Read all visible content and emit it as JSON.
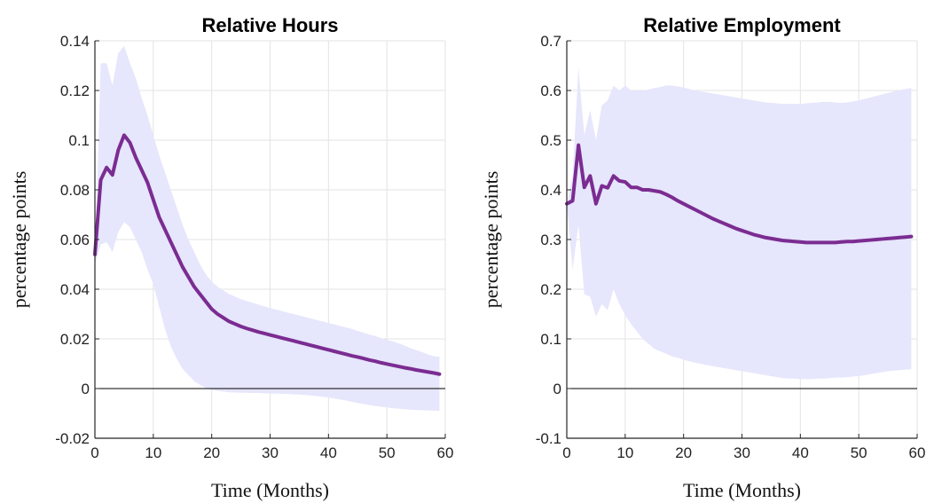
{
  "colors": {
    "band": "#e6e6fc",
    "line": "#7b2c91",
    "grid": "#e3e3e3",
    "axis": "#262626",
    "zero": "#000000"
  },
  "chart_data": [
    {
      "type": "line",
      "title": "Relative Hours",
      "xlabel": "Time (Months)",
      "ylabel": "percentage points",
      "xlim": [
        0,
        60
      ],
      "ylim": [
        -0.02,
        0.14
      ],
      "xticks": [
        "0",
        "10",
        "20",
        "30",
        "40",
        "50",
        "60"
      ],
      "yticks": [
        "-0.02",
        "0",
        "0.02",
        "0.04",
        "0.06",
        "0.08",
        "0.1",
        "0.12",
        "0.14"
      ],
      "grid": true,
      "zero_line": true,
      "series": [
        {
          "type": "line",
          "x": [
            0,
            1,
            2,
            3,
            4,
            5,
            6,
            7,
            8,
            9,
            10,
            11,
            12,
            13,
            14,
            15,
            16,
            17,
            18,
            19,
            20,
            21,
            22,
            23,
            24,
            25,
            26,
            27,
            28,
            29,
            30,
            31,
            32,
            33,
            34,
            35,
            36,
            37,
            38,
            39,
            40,
            41,
            42,
            43,
            44,
            45,
            46,
            47,
            48,
            49,
            50,
            51,
            52,
            53,
            54,
            55,
            56,
            57,
            58,
            59
          ],
          "y": [
            0.054,
            0.084,
            0.089,
            0.086,
            0.096,
            0.102,
            0.099,
            0.093,
            0.088,
            0.083,
            0.076,
            0.069,
            0.064,
            0.059,
            0.054,
            0.049,
            0.045,
            0.041,
            0.038,
            0.035,
            0.032,
            0.03,
            0.0285,
            0.027,
            0.026,
            0.025,
            0.0242,
            0.0235,
            0.0228,
            0.0222,
            0.0216,
            0.021,
            0.0204,
            0.0198,
            0.0192,
            0.0186,
            0.018,
            0.0174,
            0.0168,
            0.0162,
            0.0156,
            0.015,
            0.0144,
            0.0138,
            0.0132,
            0.0127,
            0.0121,
            0.0115,
            0.011,
            0.0104,
            0.0099,
            0.0094,
            0.0089,
            0.0084,
            0.008,
            0.0075,
            0.0071,
            0.0067,
            0.0063,
            0.0058
          ]
        },
        {
          "type": "band",
          "x": [
            0,
            1,
            2,
            3,
            4,
            5,
            6,
            7,
            8,
            9,
            10,
            11,
            12,
            13,
            14,
            15,
            16,
            17,
            18,
            19,
            20,
            21,
            22,
            23,
            24,
            25,
            26,
            27,
            28,
            29,
            30,
            31,
            32,
            33,
            34,
            35,
            36,
            37,
            38,
            39,
            40,
            41,
            42,
            43,
            44,
            45,
            46,
            47,
            48,
            49,
            50,
            51,
            52,
            53,
            54,
            55,
            56,
            57,
            58,
            59
          ],
          "upper": [
            0.05,
            0.131,
            0.131,
            0.122,
            0.135,
            0.138,
            0.131,
            0.125,
            0.117,
            0.11,
            0.102,
            0.094,
            0.087,
            0.08,
            0.073,
            0.066,
            0.06,
            0.055,
            0.05,
            0.046,
            0.043,
            0.041,
            0.0395,
            0.038,
            0.037,
            0.036,
            0.0352,
            0.0345,
            0.0338,
            0.0331,
            0.0324,
            0.0318,
            0.0312,
            0.0306,
            0.03,
            0.0294,
            0.0288,
            0.0282,
            0.0276,
            0.027,
            0.0264,
            0.0258,
            0.0252,
            0.0246,
            0.024,
            0.0232,
            0.0225,
            0.0218,
            0.0211,
            0.0204,
            0.0196,
            0.019,
            0.0182,
            0.0173,
            0.0163,
            0.0155,
            0.0147,
            0.0138,
            0.013,
            0.0128
          ],
          "lower": [
            0.05,
            0.058,
            0.059,
            0.055,
            0.063,
            0.067,
            0.065,
            0.06,
            0.055,
            0.048,
            0.042,
            0.033,
            0.024,
            0.017,
            0.012,
            0.008,
            0.0055,
            0.003,
            0.0015,
            0.0002,
            -0.0005,
            -0.0009,
            -0.0012,
            -0.0015,
            -0.0016,
            -0.0017,
            -0.0017,
            -0.0018,
            -0.0018,
            -0.0019,
            -0.002,
            -0.002,
            -0.0021,
            -0.0022,
            -0.0023,
            -0.0024,
            -0.0026,
            -0.0028,
            -0.003,
            -0.0033,
            -0.0036,
            -0.004,
            -0.0044,
            -0.0048,
            -0.0053,
            -0.0058,
            -0.0062,
            -0.0066,
            -0.007,
            -0.0073,
            -0.0076,
            -0.0079,
            -0.0081,
            -0.0083,
            -0.0085,
            -0.0086,
            -0.0087,
            -0.0088,
            -0.0089,
            -0.009
          ]
        }
      ]
    },
    {
      "type": "line",
      "title": "Relative Employment",
      "xlabel": "Time (Months)",
      "ylabel": "percentage points",
      "xlim": [
        0,
        60
      ],
      "ylim": [
        -0.1,
        0.7
      ],
      "xticks": [
        "0",
        "10",
        "20",
        "30",
        "40",
        "50",
        "60"
      ],
      "yticks": [
        "-0.1",
        "0",
        "0.1",
        "0.2",
        "0.3",
        "0.4",
        "0.5",
        "0.6",
        "0.7"
      ],
      "grid": true,
      "zero_line": true,
      "series": [
        {
          "type": "line",
          "x": [
            0,
            1,
            2,
            3,
            4,
            5,
            6,
            7,
            8,
            9,
            10,
            11,
            12,
            13,
            14,
            15,
            16,
            17,
            18,
            19,
            20,
            21,
            22,
            23,
            24,
            25,
            26,
            27,
            28,
            29,
            30,
            31,
            32,
            33,
            34,
            35,
            36,
            37,
            38,
            39,
            40,
            41,
            42,
            43,
            44,
            45,
            46,
            47,
            48,
            49,
            50,
            51,
            52,
            53,
            54,
            55,
            56,
            57,
            58,
            59
          ],
          "y": [
            0.372,
            0.378,
            0.49,
            0.405,
            0.428,
            0.372,
            0.408,
            0.404,
            0.428,
            0.418,
            0.416,
            0.405,
            0.405,
            0.4,
            0.4,
            0.398,
            0.396,
            0.391,
            0.385,
            0.378,
            0.372,
            0.366,
            0.36,
            0.354,
            0.348,
            0.342,
            0.337,
            0.332,
            0.327,
            0.322,
            0.318,
            0.314,
            0.31,
            0.307,
            0.304,
            0.302,
            0.3,
            0.298,
            0.297,
            0.296,
            0.295,
            0.294,
            0.294,
            0.294,
            0.294,
            0.294,
            0.294,
            0.295,
            0.296,
            0.296,
            0.297,
            0.298,
            0.299,
            0.3,
            0.301,
            0.302,
            0.303,
            0.304,
            0.305,
            0.306
          ]
        },
        {
          "type": "band",
          "x": [
            0,
            1,
            2,
            3,
            4,
            5,
            6,
            7,
            8,
            9,
            10,
            11,
            12,
            13,
            14,
            15,
            16,
            17,
            18,
            19,
            20,
            21,
            22,
            23,
            24,
            25,
            26,
            27,
            28,
            29,
            30,
            31,
            32,
            33,
            34,
            35,
            36,
            37,
            38,
            39,
            40,
            41,
            42,
            43,
            44,
            45,
            46,
            47,
            48,
            49,
            50,
            51,
            52,
            53,
            54,
            55,
            56,
            57,
            58,
            59
          ],
          "upper": [
            0.37,
            0.43,
            0.645,
            0.51,
            0.56,
            0.5,
            0.57,
            0.58,
            0.61,
            0.6,
            0.61,
            0.6,
            0.6,
            0.6,
            0.602,
            0.605,
            0.607,
            0.61,
            0.61,
            0.608,
            0.606,
            0.603,
            0.6,
            0.598,
            0.596,
            0.594,
            0.592,
            0.59,
            0.588,
            0.586,
            0.584,
            0.582,
            0.58,
            0.578,
            0.576,
            0.575,
            0.574,
            0.573,
            0.573,
            0.573,
            0.573,
            0.574,
            0.575,
            0.576,
            0.577,
            0.577,
            0.576,
            0.575,
            0.576,
            0.578,
            0.58,
            0.583,
            0.586,
            0.589,
            0.592,
            0.595,
            0.598,
            0.601,
            0.603,
            0.605
          ],
          "lower": [
            0.37,
            0.24,
            0.33,
            0.19,
            0.185,
            0.145,
            0.17,
            0.158,
            0.2,
            0.17,
            0.148,
            0.13,
            0.115,
            0.1,
            0.09,
            0.08,
            0.075,
            0.07,
            0.065,
            0.062,
            0.058,
            0.055,
            0.052,
            0.05,
            0.047,
            0.045,
            0.043,
            0.041,
            0.039,
            0.037,
            0.035,
            0.033,
            0.031,
            0.029,
            0.027,
            0.025,
            0.023,
            0.021,
            0.02,
            0.02,
            0.019,
            0.019,
            0.019,
            0.02,
            0.02,
            0.021,
            0.022,
            0.022,
            0.023,
            0.024,
            0.025,
            0.027,
            0.029,
            0.031,
            0.033,
            0.035,
            0.036,
            0.037,
            0.038,
            0.039
          ]
        }
      ]
    }
  ]
}
